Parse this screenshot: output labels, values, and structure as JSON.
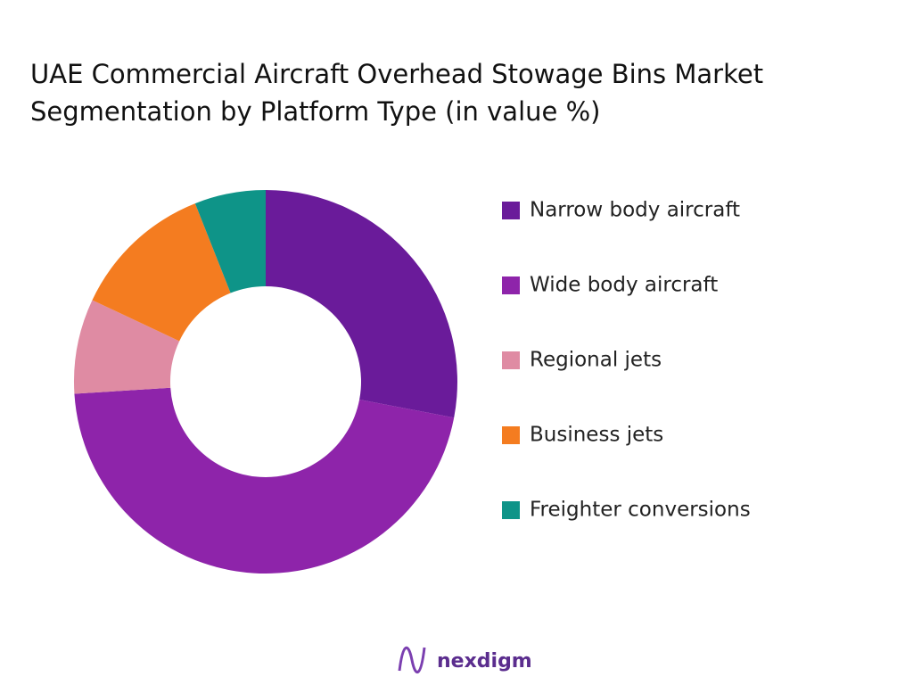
{
  "chart_data": {
    "type": "donut",
    "title": "UAE Commercial Aircraft Overhead Stowage Bins Market Segmentation by Platform Type (in value %)",
    "categories": [
      "Narrow body aircraft",
      "Wide body aircraft",
      "Regional jets",
      "Business jets",
      "Freighter conversions"
    ],
    "values": [
      28,
      46,
      8,
      12,
      6
    ],
    "colors": [
      "#6a1b9a",
      "#8e24aa",
      "#df8ba3",
      "#f47c20",
      "#0e9488"
    ],
    "legend": "right"
  },
  "logo": "nexdigm"
}
